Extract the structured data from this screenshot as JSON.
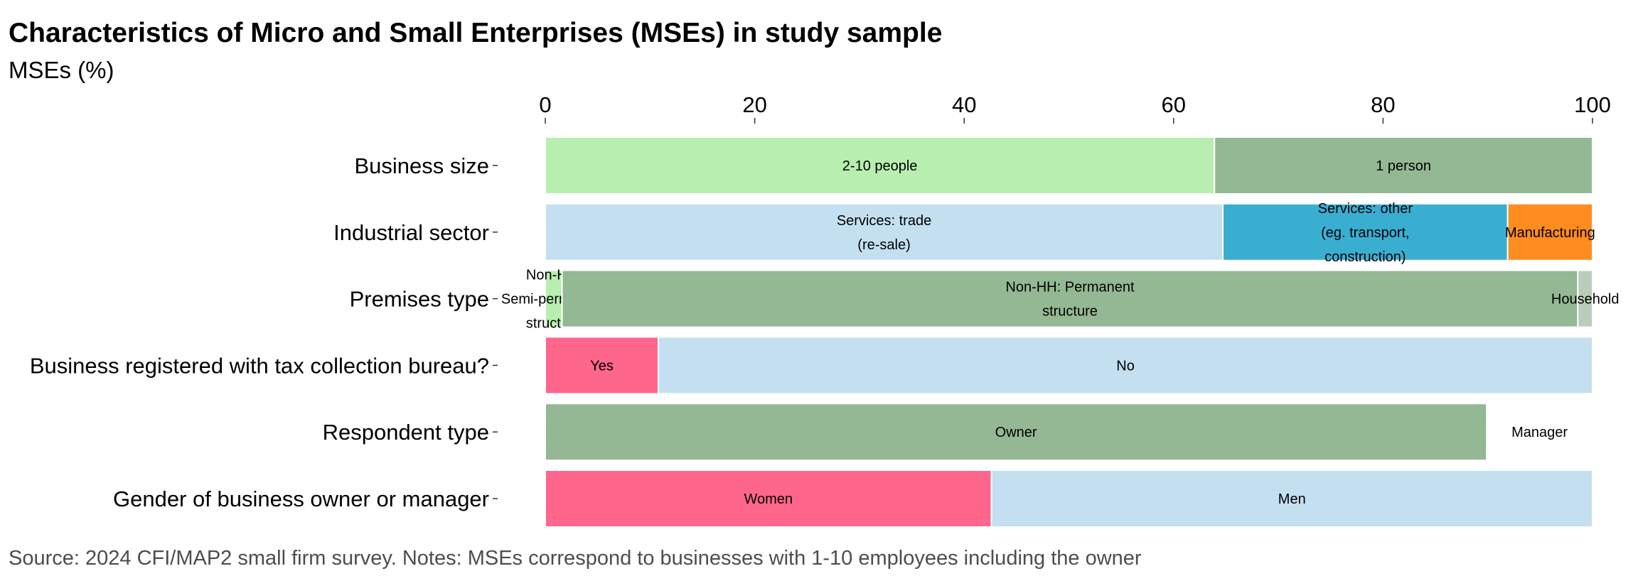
{
  "chart_data": {
    "type": "bar",
    "orientation": "horizontal",
    "stacked": true,
    "title": "Characteristics of Micro and Small Enterprises (MSEs) in study sample",
    "subtitle": "MSEs (%)",
    "caption": "Source: 2024 CFI/MAP2 small firm survey. Notes: MSEs correspond to businesses with 1-10 employees including the owner",
    "xlim": [
      0,
      100
    ],
    "xticks": [
      "0",
      "20",
      "40",
      "60",
      "80",
      "100"
    ],
    "xaxis_position": "top",
    "grid": false,
    "rows": [
      {
        "category": "Business size",
        "segments": [
          {
            "label": [
              "2-10 people"
            ],
            "value": 63.9,
            "color": "#b8eeb0"
          },
          {
            "label": [
              "1 person"
            ],
            "value": 36.1,
            "color": "#93b893"
          }
        ]
      },
      {
        "category": "Industrial sector",
        "segments": [
          {
            "label": [
              "Services: trade",
              "(re-sale)"
            ],
            "value": 64.7,
            "color": "#c4dff0"
          },
          {
            "label": [
              "Services: other",
              "(eg. transport,",
              "construction)"
            ],
            "value": 27.2,
            "color": "#39aed1"
          },
          {
            "label": [
              "Manufacturing"
            ],
            "value": 8.1,
            "color": "#ff8c1f"
          }
        ]
      },
      {
        "category": "Premises type",
        "segments": [
          {
            "label": [
              "Non-HH:",
              "Semi-permanent",
              "structure"
            ],
            "value": 1.6,
            "color": "#b8eeb0"
          },
          {
            "label": [
              "Non-HH: Permanent",
              "structure"
            ],
            "value": 97.0,
            "color": "#93b893"
          },
          {
            "label": [
              "Household"
            ],
            "value": 1.4,
            "color": "#b9cdb9"
          }
        ]
      },
      {
        "category": "Business registered with tax collection bureau?",
        "segments": [
          {
            "label": [
              "Yes"
            ],
            "value": 10.8,
            "color": "#ff668c"
          },
          {
            "label": [
              "No"
            ],
            "value": 89.2,
            "color": "#c4dff0"
          }
        ]
      },
      {
        "category": "Respondent type",
        "segments": [
          {
            "label": [
              "Owner"
            ],
            "value": 89.9,
            "color": "#93b893"
          },
          {
            "label": [
              "Manager"
            ],
            "value": 10.1,
            "color": "#ffffff"
          }
        ]
      },
      {
        "category": "Gender of business owner or manager",
        "segments": [
          {
            "label": [
              "Women"
            ],
            "value": 42.6,
            "color": "#ff668c"
          },
          {
            "label": [
              "Men"
            ],
            "value": 57.4,
            "color": "#c4dff0"
          }
        ]
      }
    ]
  }
}
